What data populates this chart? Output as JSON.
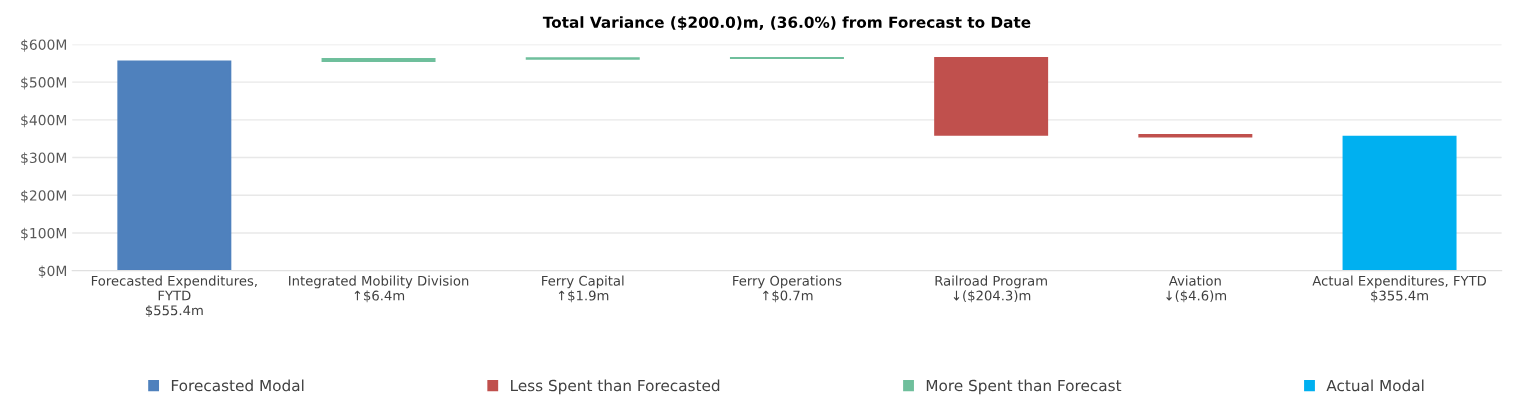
{
  "chart_data": {
    "type": "bar",
    "title": "Total Variance ($200.0)m, (36.0%) from Forecast to Date",
    "categories": [
      "Forecasted Expenditures,\nFYTD\n$555.4m",
      "Integrated Mobility Division\n↑$6.4m",
      "Ferry Capital\n↑$1.9m",
      "Ferry Operations\n↑$0.7m",
      "Railroad Program\n↓($204.3)m",
      "Aviation\n↓($4.6)m",
      "Actual Expenditures, FYTD\n$355.4m"
    ],
    "series": [
      {
        "name": "Forecasted Modal",
        "color": "#4f81bd",
        "values": [
          555.4,
          null,
          null,
          null,
          null,
          null,
          null
        ],
        "base": [
          0,
          null,
          null,
          null,
          null,
          null,
          null
        ]
      },
      {
        "name": "Less Spent than Forecasted",
        "color": "#c0504d",
        "values": [
          null,
          null,
          null,
          null,
          -204.3,
          -4.6,
          null
        ],
        "base": [
          null,
          null,
          null,
          null,
          564.4,
          360.1,
          null
        ]
      },
      {
        "name": "More Spent than Forecast",
        "color": "#6fbf9c",
        "values": [
          null,
          6.4,
          1.9,
          0.7,
          null,
          null,
          null
        ],
        "base": [
          null,
          555.4,
          561.8,
          563.7,
          null,
          null,
          null
        ]
      },
      {
        "name": "Actual Modal",
        "color": "#00b0f0",
        "values": [
          null,
          null,
          null,
          null,
          null,
          null,
          355.4
        ],
        "base": [
          null,
          null,
          null,
          null,
          null,
          null,
          0
        ]
      }
    ],
    "ylim": [
      0,
      600
    ],
    "yticks": [
      {
        "value": 0,
        "label": "$0M"
      },
      {
        "value": 100,
        "label": "$100M"
      },
      {
        "value": 200,
        "label": "$200M"
      },
      {
        "value": 300,
        "label": "$300M"
      },
      {
        "value": 400,
        "label": "$400M"
      },
      {
        "value": 500,
        "label": "$500M"
      },
      {
        "value": 600,
        "label": "$600M"
      }
    ],
    "grid": "y",
    "legend": "bottom"
  }
}
